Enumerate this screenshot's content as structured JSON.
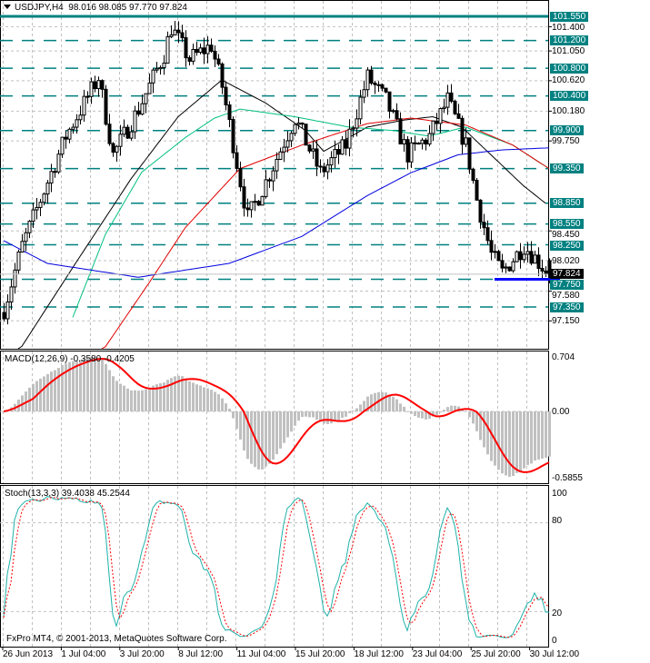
{
  "header": {
    "symbol": "USDJPY,H4",
    "ohlc": "98.016 98.085 97.770 97.824"
  },
  "colors": {
    "level": "#008080",
    "ma_fast": "#000000",
    "ma_green": "#00c080",
    "ma_red": "#e00000",
    "ma_blue": "#0000dd",
    "macd_hist": "#c0c0c0",
    "macd_signal": "#ff0000",
    "stoch_k": "#20b2aa",
    "stoch_d": "#ff0000",
    "support_line": "#0000ff"
  },
  "copyright": "FxPro MT4, © 2001-2013, MetaQuotes Software Corp.",
  "chart_data": [
    {
      "type": "candlestick",
      "title": "USDJPY,H4",
      "ylim": [
        97.05,
        101.7
      ],
      "price_axis_labels": [
        "101.400",
        "101.050",
        "100.620",
        "100.180",
        "99.750",
        "98.450",
        "98.020",
        "97.580",
        "97.150"
      ],
      "current_price": "97.824",
      "horizontal_levels": [
        {
          "value": 101.55,
          "label": "101.550",
          "style": "solid"
        },
        {
          "value": 101.2,
          "label": "101.200",
          "style": "dashed"
        },
        {
          "value": 100.8,
          "label": "100.800",
          "style": "dashed"
        },
        {
          "value": 100.4,
          "label": "100.400",
          "style": "dashed"
        },
        {
          "value": 99.9,
          "label": "99.900",
          "style": "dashed"
        },
        {
          "value": 99.35,
          "label": "99.350",
          "style": "dashed"
        },
        {
          "value": 98.85,
          "label": "98.850",
          "style": "dashed"
        },
        {
          "value": 98.55,
          "label": "98.550",
          "style": "dashed"
        },
        {
          "value": 98.25,
          "label": "98.250",
          "style": "dashed"
        },
        {
          "value": 97.75,
          "label": "97.750",
          "style": "dashed"
        },
        {
          "value": 97.35,
          "label": "97.350",
          "style": "dashed"
        }
      ],
      "support_segment": {
        "value": 97.75,
        "from_bar": 135,
        "to_bar": 153
      },
      "price_path": [
        [
          0,
          97.32
        ],
        [
          5,
          98.24
        ],
        [
          11,
          99.03
        ],
        [
          17,
          99.82
        ],
        [
          26,
          100.67
        ],
        [
          30,
          99.55
        ],
        [
          37,
          100.21
        ],
        [
          44,
          101.0
        ],
        [
          46,
          101.39
        ],
        [
          51,
          100.93
        ],
        [
          57,
          101.13
        ],
        [
          60,
          100.54
        ],
        [
          65,
          99.16
        ],
        [
          67,
          98.64
        ],
        [
          72,
          99.16
        ],
        [
          80,
          100.08
        ],
        [
          87,
          99.29
        ],
        [
          94,
          99.69
        ],
        [
          100,
          100.67
        ],
        [
          105,
          100.34
        ],
        [
          111,
          99.55
        ],
        [
          117,
          99.82
        ],
        [
          122,
          100.34
        ],
        [
          127,
          99.69
        ],
        [
          130,
          98.9
        ],
        [
          134,
          98.11
        ],
        [
          137,
          97.85
        ],
        [
          143,
          98.24
        ],
        [
          150,
          97.82
        ]
      ],
      "moving_averages": [
        {
          "name": "ma-black",
          "color": "#000000",
          "path": [
            [
              4,
              96.7
            ],
            [
              20,
              98.0
            ],
            [
              35,
              99.2
            ],
            [
              48,
              100.1
            ],
            [
              60,
              100.63
            ],
            [
              72,
              100.3
            ],
            [
              83,
              99.9
            ],
            [
              88,
              99.6
            ],
            [
              95,
              99.8
            ],
            [
              100,
              99.95
            ],
            [
              110,
              100.05
            ],
            [
              118,
              100.1
            ],
            [
              126,
              99.95
            ],
            [
              135,
              99.5
            ],
            [
              143,
              99.1
            ],
            [
              149,
              98.85
            ]
          ]
        },
        {
          "name": "ma-green",
          "color": "#00c080",
          "path": [
            [
              19,
              97.2
            ],
            [
              28,
              98.4
            ],
            [
              38,
              99.3
            ],
            [
              50,
              99.8
            ],
            [
              58,
              100.08
            ],
            [
              65,
              100.21
            ],
            [
              80,
              100.1
            ],
            [
              95,
              99.95
            ],
            [
              107,
              99.9
            ],
            [
              117,
              99.82
            ],
            [
              127,
              99.95
            ],
            [
              140,
              99.69
            ],
            [
              150,
              99.35
            ]
          ]
        },
        {
          "name": "ma-red",
          "color": "#e00000",
          "path": [
            [
              27,
              96.7
            ],
            [
              40,
              97.7
            ],
            [
              50,
              98.5
            ],
            [
              65,
              99.35
            ],
            [
              82,
              99.69
            ],
            [
              100,
              100.0
            ],
            [
              112,
              100.08
            ],
            [
              127,
              99.98
            ],
            [
              140,
              99.69
            ],
            [
              150,
              99.35
            ]
          ]
        },
        {
          "name": "ma-blue",
          "color": "#0000dd",
          "path": [
            [
              0,
              98.31
            ],
            [
              12,
              97.98
            ],
            [
              37,
              97.78
            ],
            [
              62,
              97.98
            ],
            [
              82,
              98.37
            ],
            [
              100,
              98.96
            ],
            [
              112,
              99.29
            ],
            [
              125,
              99.55
            ],
            [
              137,
              99.62
            ],
            [
              150,
              99.65
            ]
          ]
        }
      ],
      "time_labels": [
        "26 Jun 2013",
        "1 Jul 04:00",
        "3 Jul 20:00",
        "8 Jul 12:00",
        "11 Jul 04:00",
        "15 Jul 20:00",
        "18 Jul 12:00",
        "23 Jul 04:00",
        "25 Jul 20:00",
        "30 Jul 12:00"
      ]
    },
    {
      "type": "macd",
      "label": "MACD(12,26,9) -0.3580 -0.4205",
      "axis_labels": [
        "0.704",
        "0.00",
        "-0.5855"
      ],
      "ylim": [
        -0.5855,
        0.704
      ]
    },
    {
      "type": "stochastic",
      "label": "Stoch(13,3,3) 39.4038 45.2544",
      "axis_labels": [
        "100",
        "80",
        "20",
        "0"
      ],
      "ylim": [
        0,
        100
      ]
    }
  ]
}
